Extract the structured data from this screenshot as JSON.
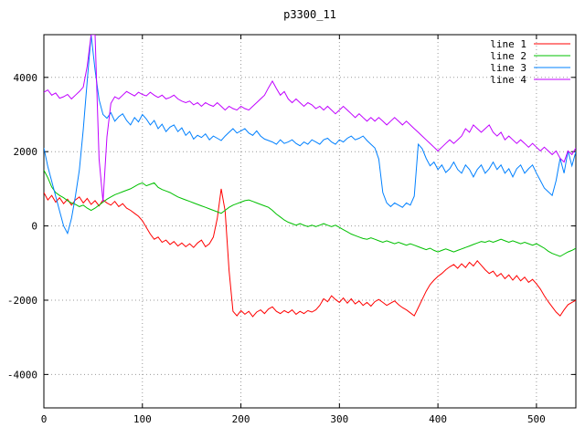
{
  "window": {
    "title": "p3300_11"
  },
  "colors": {
    "series1": "#ff0000",
    "series2": "#00c000",
    "series3": "#0080ff",
    "series4": "#c000ff",
    "grid": "#9a9a9a",
    "border": "#000000",
    "background": "#ffffff"
  },
  "chart_data": {
    "type": "line",
    "title": "p3300_11",
    "xlabel": "",
    "ylabel": "",
    "xlim": [
      0,
      540
    ],
    "ylim": [
      -4900,
      5150
    ],
    "xticks": [
      0,
      100,
      200,
      300,
      400,
      500
    ],
    "yticks": [
      -4000,
      -2000,
      0,
      2000,
      4000
    ],
    "grid": true,
    "legend_position": "top-right",
    "x_start": 0,
    "x_step": 4,
    "series": [
      {
        "name": "line 1",
        "color": "#ff0000",
        "values": [
          900,
          700,
          820,
          640,
          760,
          600,
          720,
          560,
          700,
          780,
          620,
          740,
          580,
          680,
          540,
          700,
          620,
          560,
          660,
          520,
          600,
          480,
          420,
          340,
          260,
          140,
          -40,
          -220,
          -360,
          -300,
          -440,
          -380,
          -500,
          -420,
          -540,
          -460,
          -560,
          -480,
          -580,
          -460,
          -380,
          -560,
          -480,
          -300,
          200,
          1000,
          400,
          -1200,
          -2300,
          -2420,
          -2280,
          -2380,
          -2300,
          -2440,
          -2320,
          -2260,
          -2360,
          -2240,
          -2180,
          -2300,
          -2360,
          -2280,
          -2340,
          -2260,
          -2380,
          -2300,
          -2360,
          -2280,
          -2320,
          -2260,
          -2140,
          -1960,
          -2040,
          -1880,
          -1980,
          -2060,
          -1940,
          -2080,
          -1960,
          -2100,
          -2020,
          -2140,
          -2060,
          -2160,
          -2040,
          -1980,
          -2060,
          -2140,
          -2080,
          -2020,
          -2120,
          -2200,
          -2260,
          -2340,
          -2420,
          -2200,
          -1980,
          -1760,
          -1580,
          -1460,
          -1360,
          -1280,
          -1180,
          -1100,
          -1040,
          -1140,
          -1020,
          -1120,
          -980,
          -1080,
          -940,
          -1060,
          -1180,
          -1280,
          -1220,
          -1360,
          -1280,
          -1420,
          -1320,
          -1460,
          -1340,
          -1480,
          -1380,
          -1520,
          -1440,
          -1560,
          -1700,
          -1880,
          -2040,
          -2180,
          -2320,
          -2420,
          -2260,
          -2120,
          -2060,
          -2000
        ]
      },
      {
        "name": "line 2",
        "color": "#00c000",
        "values": [
          1500,
          1300,
          1050,
          900,
          820,
          760,
          680,
          620,
          580,
          520,
          560,
          480,
          420,
          480,
          560,
          640,
          720,
          780,
          840,
          880,
          920,
          960,
          1000,
          1060,
          1120,
          1160,
          1080,
          1120,
          1160,
          1040,
          980,
          940,
          900,
          840,
          780,
          740,
          700,
          660,
          620,
          580,
          540,
          500,
          460,
          420,
          380,
          340,
          420,
          500,
          560,
          600,
          640,
          680,
          700,
          660,
          620,
          580,
          540,
          500,
          420,
          320,
          240,
          160,
          100,
          60,
          20,
          60,
          20,
          -20,
          20,
          -20,
          20,
          60,
          20,
          -20,
          20,
          -40,
          -100,
          -160,
          -220,
          -260,
          -300,
          -340,
          -360,
          -320,
          -360,
          -400,
          -440,
          -400,
          -440,
          -480,
          -440,
          -480,
          -520,
          -480,
          -520,
          -560,
          -600,
          -640,
          -600,
          -660,
          -700,
          -660,
          -620,
          -660,
          -700,
          -660,
          -620,
          -580,
          -540,
          -500,
          -460,
          -420,
          -440,
          -400,
          -440,
          -400,
          -360,
          -400,
          -440,
          -400,
          -440,
          -480,
          -440,
          -480,
          -520,
          -480,
          -540,
          -600,
          -680,
          -740,
          -780,
          -820,
          -760,
          -700,
          -660,
          -600
        ]
      },
      {
        "name": "line 3",
        "color": "#0080ff",
        "values": [
          2100,
          1600,
          1200,
          800,
          400,
          0,
          -200,
          200,
          800,
          1500,
          2600,
          3900,
          5150,
          4200,
          3400,
          3000,
          2900,
          3050,
          2820,
          2940,
          3020,
          2840,
          2720,
          2920,
          2800,
          3000,
          2880,
          2720,
          2840,
          2620,
          2740,
          2540,
          2660,
          2720,
          2540,
          2640,
          2440,
          2540,
          2340,
          2440,
          2380,
          2480,
          2320,
          2420,
          2360,
          2300,
          2420,
          2520,
          2620,
          2500,
          2560,
          2620,
          2500,
          2440,
          2560,
          2420,
          2340,
          2300,
          2260,
          2200,
          2320,
          2220,
          2260,
          2320,
          2220,
          2160,
          2260,
          2200,
          2320,
          2260,
          2200,
          2320,
          2360,
          2260,
          2200,
          2320,
          2260,
          2360,
          2420,
          2320,
          2360,
          2420,
          2300,
          2200,
          2100,
          1800,
          900,
          620,
          520,
          620,
          560,
          500,
          620,
          560,
          800,
          2200,
          2080,
          1820,
          1620,
          1720,
          1520,
          1640,
          1440,
          1540,
          1720,
          1520,
          1420,
          1640,
          1520,
          1320,
          1520,
          1640,
          1420,
          1540,
          1720,
          1520,
          1640,
          1420,
          1540,
          1320,
          1540,
          1640,
          1420,
          1540,
          1640,
          1420,
          1220,
          1020,
          920,
          820,
          1220,
          1820,
          1420,
          2020,
          1620,
          2000
        ]
      },
      {
        "name": "line 4",
        "color": "#c000ff",
        "values": [
          3600,
          3660,
          3520,
          3580,
          3440,
          3480,
          3540,
          3420,
          3520,
          3620,
          3740,
          4300,
          5150,
          5150,
          1800,
          650,
          2400,
          3300,
          3480,
          3420,
          3520,
          3620,
          3560,
          3500,
          3600,
          3540,
          3500,
          3600,
          3520,
          3460,
          3520,
          3420,
          3460,
          3520,
          3420,
          3360,
          3320,
          3360,
          3260,
          3320,
          3220,
          3320,
          3260,
          3220,
          3320,
          3220,
          3120,
          3220,
          3160,
          3120,
          3220,
          3160,
          3120,
          3220,
          3320,
          3420,
          3520,
          3720,
          3900,
          3700,
          3520,
          3620,
          3420,
          3320,
          3420,
          3320,
          3220,
          3320,
          3260,
          3160,
          3220,
          3120,
          3220,
          3120,
          3020,
          3120,
          3220,
          3120,
          3020,
          2920,
          3020,
          2920,
          2820,
          2920,
          2820,
          2920,
          2820,
          2720,
          2820,
          2920,
          2820,
          2720,
          2820,
          2720,
          2620,
          2520,
          2420,
          2320,
          2220,
          2120,
          2020,
          2120,
          2220,
          2320,
          2220,
          2320,
          2420,
          2620,
          2520,
          2720,
          2620,
          2520,
          2620,
          2720,
          2520,
          2420,
          2520,
          2320,
          2420,
          2320,
          2220,
          2320,
          2220,
          2120,
          2220,
          2120,
          2020,
          2120,
          2020,
          1920,
          2020,
          1820,
          1720,
          2020,
          1920,
          2100
        ]
      }
    ]
  }
}
